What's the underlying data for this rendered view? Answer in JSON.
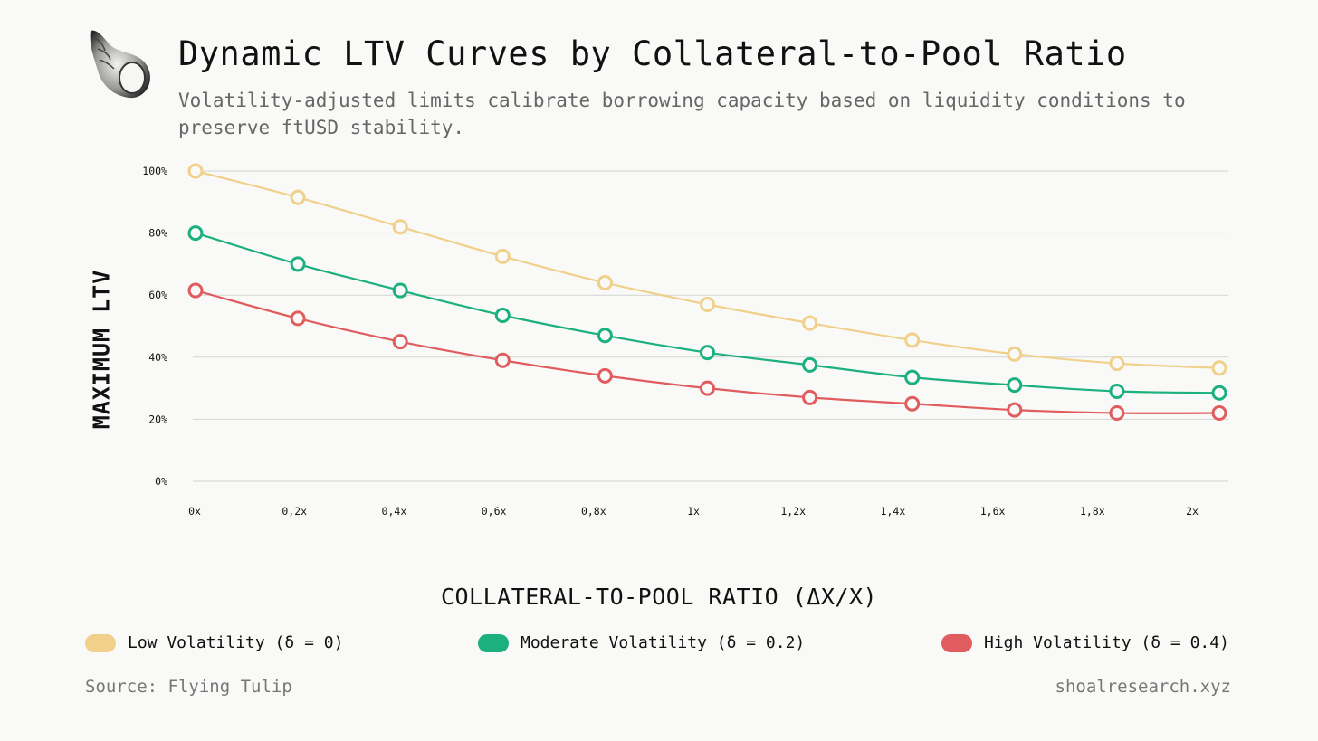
{
  "header": {
    "title": "Dynamic LTV Curves by Collateral-to-Pool Ratio",
    "subtitle": "Volatility-adjusted limits calibrate borrowing capacity based on liquidity conditions to preserve ftUSD stability."
  },
  "logo": {
    "icon": "seashell-icon"
  },
  "chart_data": {
    "type": "line",
    "title": "Dynamic LTV Curves by Collateral-to-Pool Ratio",
    "xlabel": "COLLATERAL-TO-POOL RATIO (ΔX/X)",
    "ylabel": "MAXIMUM LTV",
    "x_tick_labels": [
      "0x",
      "0,2x",
      "0,4x",
      "0,6x",
      "0,8x",
      "1x",
      "1,2x",
      "1,4x",
      "1,6x",
      "1,8x",
      "2x"
    ],
    "y_tick_labels": [
      "0%",
      "20%",
      "40%",
      "60%",
      "80%",
      "100%"
    ],
    "ylim": [
      0,
      100
    ],
    "grid": true,
    "x": [
      0,
      0.2,
      0.4,
      0.6,
      0.8,
      1.0,
      1.2,
      1.4,
      1.6,
      1.8,
      2.0
    ],
    "series": [
      {
        "name": "Low Volatility (δ = 0)",
        "color": "#f0d08a",
        "values": [
          100,
          91.5,
          82,
          72.5,
          64,
          57,
          51,
          45.5,
          41,
          38,
          36.5
        ]
      },
      {
        "name": "Moderate Volatility (δ = 0.2)",
        "color": "#1bb07e",
        "values": [
          80,
          70,
          61.5,
          53.5,
          47,
          41.5,
          37.5,
          33.5,
          31,
          29,
          28.5
        ]
      },
      {
        "name": "High Volatility (δ = 0.4)",
        "color": "#e05c5e",
        "values": [
          61.5,
          52.5,
          45,
          39,
          34,
          30,
          27,
          25,
          23,
          22,
          22
        ]
      }
    ],
    "legend_position": "bottom"
  },
  "footer": {
    "source": "Source: Flying Tulip",
    "site": "shoalresearch.xyz"
  }
}
